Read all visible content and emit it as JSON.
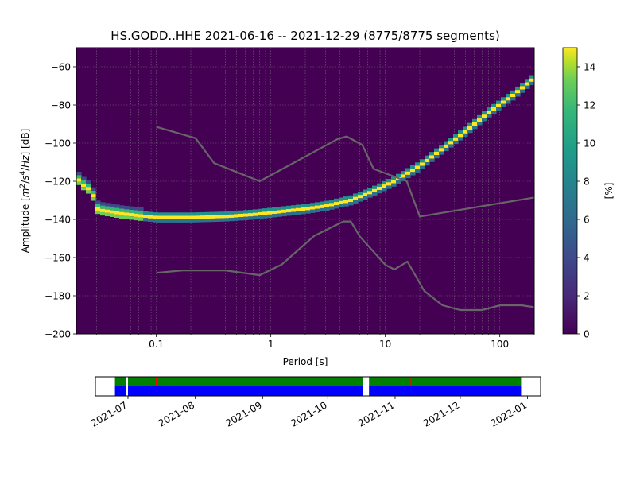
{
  "title": "HS.GODD..HHE   2021-06-16 -- 2021-12-29  (8775/8775 segments)",
  "chart_data": [
    {
      "type": "heatmap",
      "title": "HS.GODD..HHE   2021-06-16 -- 2021-12-29  (8775/8775 segments)",
      "xlabel": "Period [s]",
      "ylabel_parts": [
        "Amplitude [",
        "m",
        "2",
        "/",
        "s",
        "4",
        "/",
        "Hz",
        "] [dB]"
      ],
      "x_scale": "log",
      "xlim": [
        0.02,
        200
      ],
      "ylim": [
        -200,
        -50
      ],
      "x_ticks": [
        {
          "value": 0.1,
          "label": "0.1"
        },
        {
          "value": 1,
          "label": "1"
        },
        {
          "value": 10,
          "label": "10"
        },
        {
          "value": 100,
          "label": "100"
        }
      ],
      "y_ticks": [
        {
          "value": -60,
          "label": "−60"
        },
        {
          "value": -80,
          "label": "−80"
        },
        {
          "value": -100,
          "label": "−100"
        },
        {
          "value": -120,
          "label": "−120"
        },
        {
          "value": -140,
          "label": "−140"
        },
        {
          "value": -160,
          "label": "−160"
        },
        {
          "value": -180,
          "label": "−180"
        },
        {
          "value": -200,
          "label": "−200"
        }
      ],
      "grid": true,
      "colorbar": {
        "label": "[%]",
        "range": [
          0,
          15
        ],
        "colormap": "viridis",
        "ticks": [
          {
            "value": 0,
            "label": "0"
          },
          {
            "value": 2,
            "label": "2"
          },
          {
            "value": 4,
            "label": "4"
          },
          {
            "value": 6,
            "label": "6"
          },
          {
            "value": 8,
            "label": "8"
          },
          {
            "value": 10,
            "label": "10"
          },
          {
            "value": 12,
            "label": "12"
          },
          {
            "value": 14,
            "label": "14"
          }
        ]
      },
      "psd_mode": [
        {
          "period": 0.02,
          "db": -118
        },
        {
          "period": 0.023,
          "db": -122
        },
        {
          "period": 0.027,
          "db": -125
        },
        {
          "period": 0.031,
          "db": -135
        },
        {
          "period": 0.04,
          "db": -136
        },
        {
          "period": 0.05,
          "db": -137
        },
        {
          "period": 0.07,
          "db": -138
        },
        {
          "period": 0.1,
          "db": -139
        },
        {
          "period": 0.2,
          "db": -139
        },
        {
          "period": 0.4,
          "db": -138.5
        },
        {
          "period": 0.7,
          "db": -137.5
        },
        {
          "period": 1,
          "db": -136.5
        },
        {
          "period": 2,
          "db": -134.5
        },
        {
          "period": 3,
          "db": -133
        },
        {
          "period": 5,
          "db": -130
        },
        {
          "period": 8,
          "db": -125
        },
        {
          "period": 12,
          "db": -120
        },
        {
          "period": 20,
          "db": -112
        },
        {
          "period": 30,
          "db": -104
        },
        {
          "period": 50,
          "db": -94
        },
        {
          "period": 80,
          "db": -84
        },
        {
          "period": 130,
          "db": -75
        },
        {
          "period": 200,
          "db": -66
        }
      ],
      "nhnm": [
        {
          "period": 0.1,
          "db": -91.5
        },
        {
          "period": 0.22,
          "db": -97.4
        },
        {
          "period": 0.32,
          "db": -110.5
        },
        {
          "period": 0.8,
          "db": -120
        },
        {
          "period": 3.8,
          "db": -98
        },
        {
          "period": 4.6,
          "db": -96.5
        },
        {
          "period": 6.3,
          "db": -101
        },
        {
          "period": 7.9,
          "db": -113.5
        },
        {
          "period": 15.4,
          "db": -120
        },
        {
          "period": 20,
          "db": -138.5
        },
        {
          "period": 200,
          "db": -128.5
        }
      ],
      "nlnm": [
        {
          "period": 0.1,
          "db": -168
        },
        {
          "period": 0.17,
          "db": -166.7
        },
        {
          "period": 0.4,
          "db": -166.7
        },
        {
          "period": 0.8,
          "db": -169.2
        },
        {
          "period": 1.24,
          "db": -163.7
        },
        {
          "period": 2.4,
          "db": -148.6
        },
        {
          "period": 4.3,
          "db": -141.1
        },
        {
          "period": 5,
          "db": -141.1
        },
        {
          "period": 6,
          "db": -149
        },
        {
          "period": 10,
          "db": -163.8
        },
        {
          "period": 12,
          "db": -166.2
        },
        {
          "period": 15.6,
          "db": -162.1
        },
        {
          "period": 21.9,
          "db": -177.5
        },
        {
          "period": 31.6,
          "db": -185
        },
        {
          "period": 45,
          "db": -187.5
        },
        {
          "period": 70,
          "db": -187.5
        },
        {
          "period": 101,
          "db": -185
        },
        {
          "period": 154,
          "db": -185
        },
        {
          "period": 200,
          "db": -186
        }
      ]
    },
    {
      "type": "timeline",
      "xlim": [
        "2021-06-16",
        "2022-01-07"
      ],
      "x_ticks": [
        {
          "date": "2021-07-01",
          "label": "2021-07"
        },
        {
          "date": "2021-08-01",
          "label": "2021-08"
        },
        {
          "date": "2021-09-01",
          "label": "2021-09"
        },
        {
          "date": "2021-10-01",
          "label": "2021-10"
        },
        {
          "date": "2021-11-01",
          "label": "2021-11"
        },
        {
          "date": "2021-12-01",
          "label": "2021-12"
        },
        {
          "date": "2022-01-01",
          "label": "2022-01"
        }
      ],
      "rows": [
        {
          "color": "#008000",
          "intervals": [
            [
              "2021-06-25",
              "2021-06-30"
            ],
            [
              "2021-07-01",
              "2021-10-17"
            ],
            [
              "2021-10-20",
              "2021-12-29"
            ]
          ]
        },
        {
          "color": "#0000ff",
          "intervals": [
            [
              "2021-06-25",
              "2021-06-30"
            ],
            [
              "2021-07-01",
              "2021-10-17"
            ],
            [
              "2021-10-20",
              "2021-12-29"
            ]
          ]
        }
      ],
      "markers": {
        "color": "#ff0000",
        "dates": [
          "2021-07-14",
          "2021-07-22",
          "2021-11-08"
        ]
      }
    }
  ]
}
